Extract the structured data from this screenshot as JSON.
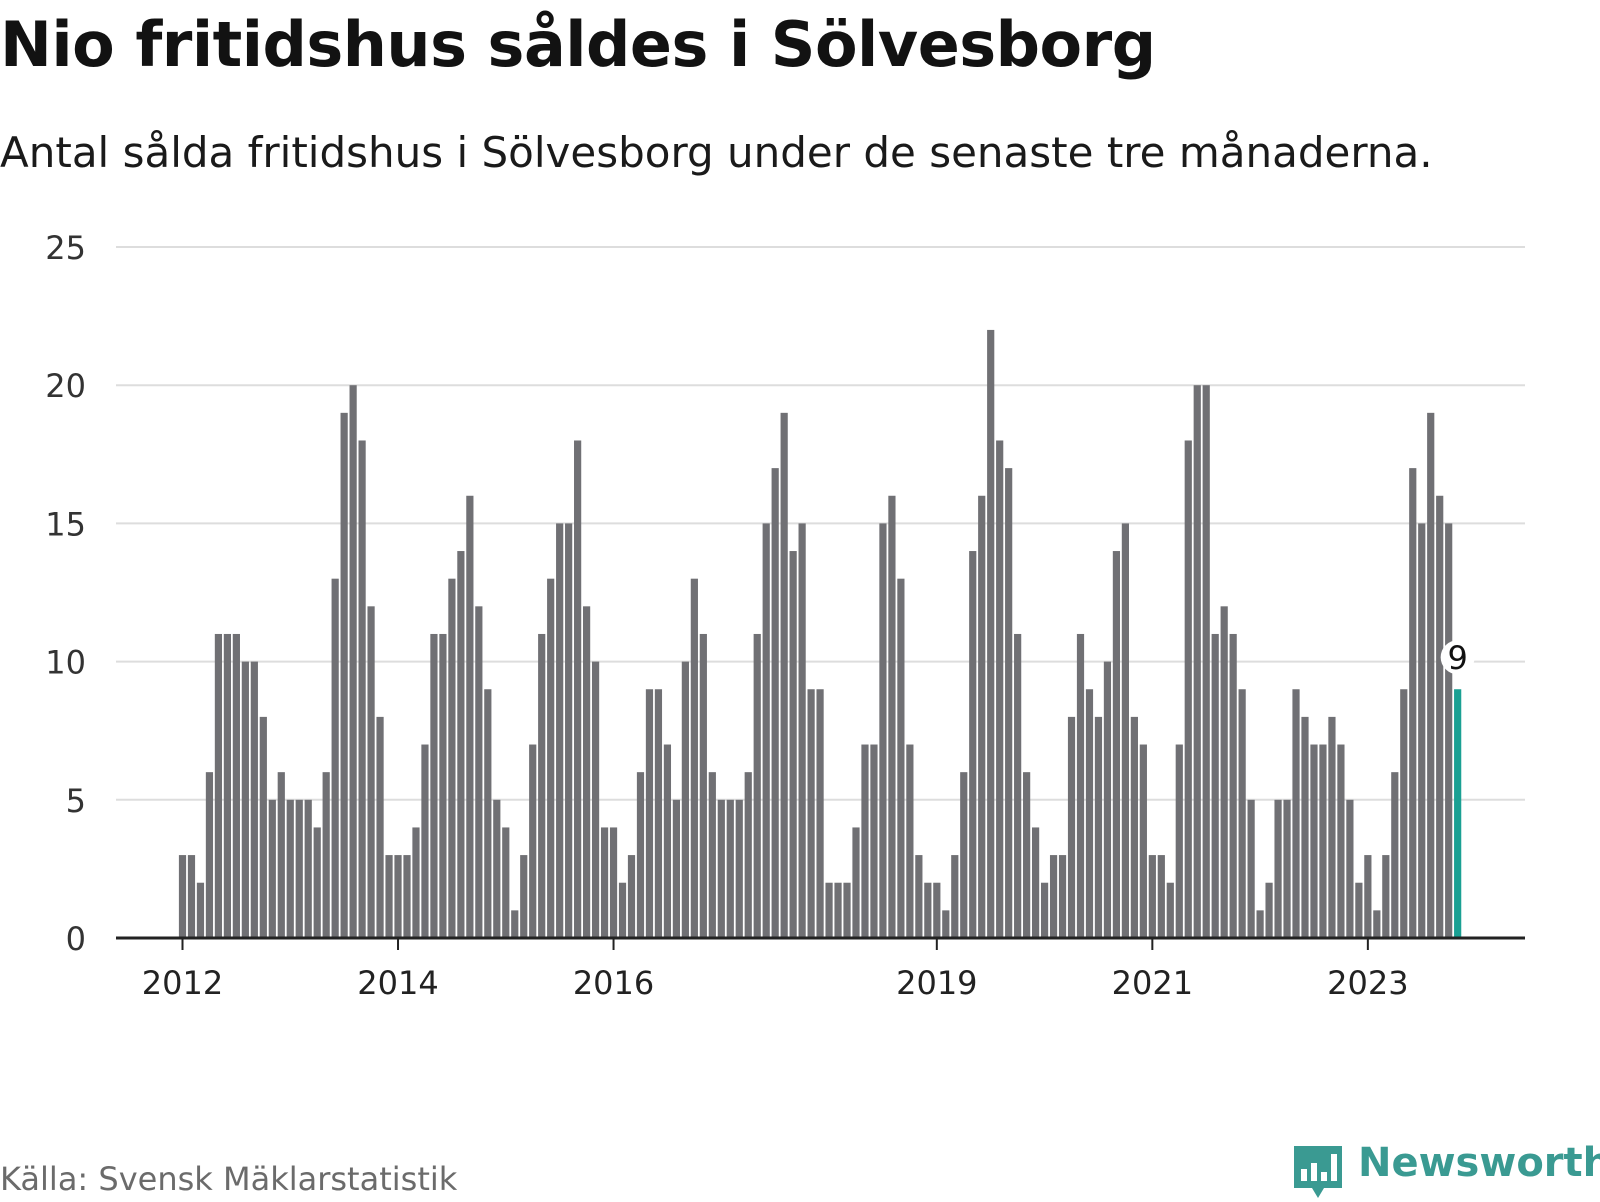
{
  "header": {
    "title": "Nio fritidshus såldes i Sölvesborg",
    "subtitle": "Antal sålda fritidshus i Sölvesborg under de senaste tre månaderna."
  },
  "footer": {
    "source": "Källa: Svensk Mäklarstatistik",
    "brand": "Newsworthy"
  },
  "colors": {
    "bar": "#707074",
    "highlight": "#1aa093",
    "grid": "#dddddd",
    "axis": "#222222",
    "brand": "#3a9a92"
  },
  "chart_data": {
    "type": "bar",
    "start": "2012-01",
    "values": [
      3,
      3,
      2,
      6,
      11,
      11,
      11,
      10,
      10,
      8,
      5,
      6,
      5,
      5,
      5,
      4,
      6,
      13,
      19,
      20,
      18,
      12,
      8,
      3,
      3,
      3,
      4,
      7,
      11,
      11,
      13,
      14,
      16,
      12,
      9,
      5,
      4,
      1,
      3,
      7,
      11,
      13,
      15,
      15,
      18,
      12,
      10,
      4,
      4,
      2,
      3,
      6,
      9,
      9,
      7,
      5,
      10,
      13,
      11,
      6,
      5,
      5,
      5,
      6,
      11,
      15,
      17,
      19,
      14,
      15,
      9,
      9,
      2,
      2,
      2,
      4,
      7,
      7,
      15,
      16,
      13,
      7,
      3,
      2,
      2,
      1,
      3,
      6,
      14,
      16,
      22,
      18,
      17,
      11,
      6,
      4,
      2,
      3,
      3,
      8,
      11,
      9,
      8,
      10,
      14,
      15,
      8,
      7,
      3,
      3,
      2,
      7,
      18,
      20,
      20,
      11,
      12,
      11,
      9,
      5,
      1,
      2,
      5,
      5,
      9,
      8,
      7,
      7,
      8,
      7,
      5,
      2,
      3,
      1,
      3,
      6,
      9,
      17,
      15,
      19,
      16,
      15,
      9
    ],
    "highlight_last": true,
    "highlight_label": "9",
    "ylim": [
      0,
      25
    ],
    "yticks": [
      0,
      5,
      10,
      15,
      20,
      25
    ],
    "xticks": [
      {
        "label": "2012",
        "index": 0
      },
      {
        "label": "2014",
        "index": 24
      },
      {
        "label": "2016",
        "index": 48
      },
      {
        "label": "2019",
        "index": 84
      },
      {
        "label": "2021",
        "index": 108
      },
      {
        "label": "2023",
        "index": 132
      }
    ],
    "grid": true,
    "legend": "none"
  }
}
